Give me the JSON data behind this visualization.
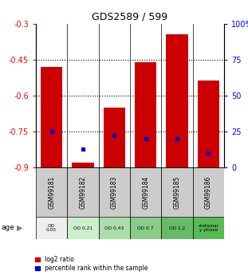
{
  "title": "GDS2589 / 599",
  "samples": [
    "GSM99181",
    "GSM99182",
    "GSM99183",
    "GSM99184",
    "GSM99185",
    "GSM99186"
  ],
  "log2_ratios": [
    -0.48,
    -0.88,
    -0.65,
    -0.46,
    -0.345,
    -0.535
  ],
  "percentile_ranks": [
    25.0,
    13.0,
    22.0,
    20.0,
    20.0,
    10.0
  ],
  "ylim_left": [
    -0.9,
    -0.3
  ],
  "ylim_right": [
    0,
    100
  ],
  "yticks_left": [
    -0.9,
    -0.75,
    -0.6,
    -0.45,
    -0.3
  ],
  "yticks_right": [
    0,
    25,
    50,
    75,
    100
  ],
  "ytick_labels_right": [
    "0",
    "25",
    "50",
    "75",
    "100%"
  ],
  "hlines": [
    -0.45,
    -0.6,
    -0.75
  ],
  "age_labels": [
    "OD\n0.05",
    "OD 0.21",
    "OD 0.43",
    "OD 0.7",
    "OD 1.2",
    "stationar\ny phase"
  ],
  "age_colors": [
    "#eeeeee",
    "#cceecc",
    "#aaddaa",
    "#88cc88",
    "#66bb66",
    "#55bb55"
  ],
  "bar_color": "#cc0000",
  "marker_color": "#0000cc",
  "sample_bg_color": "#cccccc"
}
